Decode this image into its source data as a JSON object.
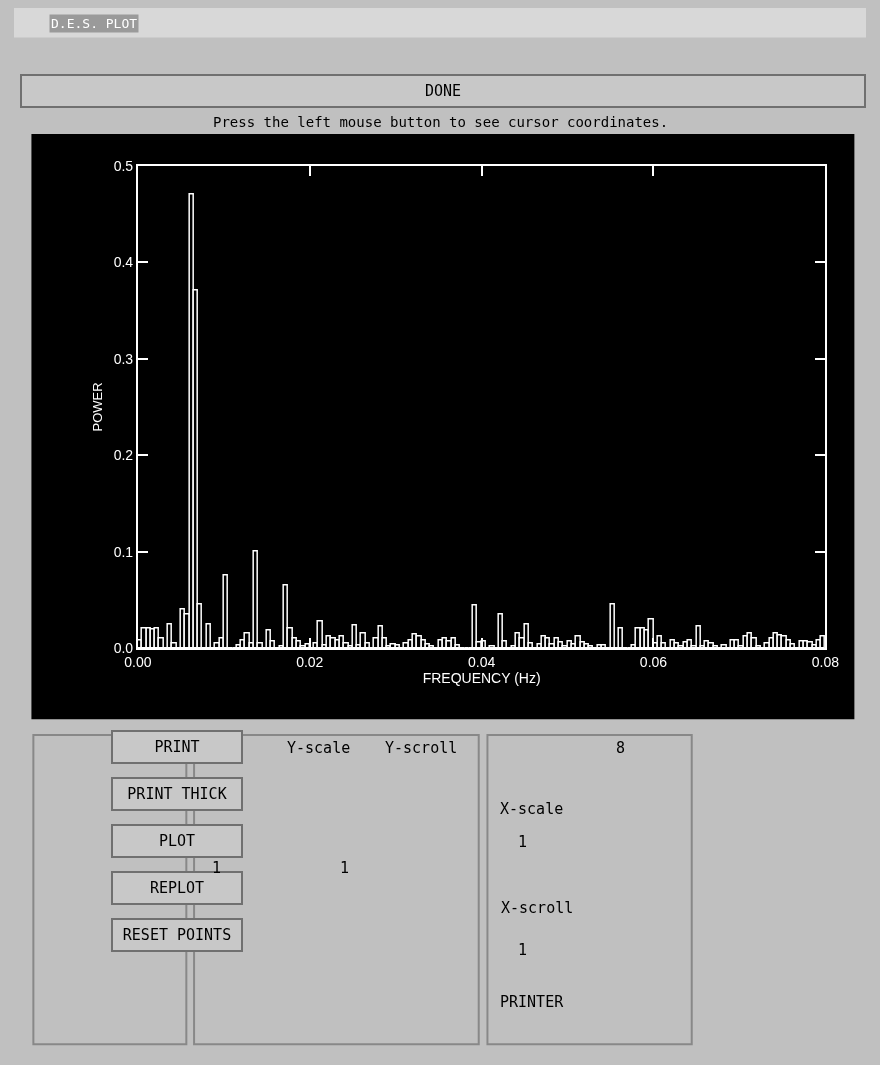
{
  "chart_data": {
    "type": "histogram",
    "title": "D.E.S. PLOT",
    "subtitle": "Press the left mouse button to see cursor coordinates.",
    "xlabel": "FREQUENCY (Hz)",
    "ylabel": "POWER",
    "color": "#ffffff",
    "bins": [
      0,
      0.0005,
      0.001,
      0.0015,
      0.002,
      0.0025,
      0.003,
      0.0035,
      0.004,
      0.0045,
      0.005,
      0.0055,
      0.006,
      0.0065,
      0.007,
      0.0075,
      0.008,
      0.0085,
      0.009,
      0.0095,
      0.01,
      0.0105,
      0.011,
      0.0115,
      0.012,
      0.0125,
      0.013,
      0.0135,
      0.014,
      0.0145,
      0.015,
      0.0155,
      0.016,
      0.0165,
      0.017,
      0.0175,
      0.018,
      0.0185,
      0.019,
      0.0195,
      0.02,
      0.0205,
      0.021,
      0.0215,
      0.022,
      0.0225,
      0.023,
      0.0235,
      0.024,
      0.0245,
      0.025,
      0.0255,
      0.026,
      0.0265,
      0.027,
      0.0275,
      0.028,
      0.0285,
      0.029,
      0.0295,
      0.03,
      0.0305,
      0.031,
      0.0315,
      0.032,
      0.0325,
      0.033,
      0.0335,
      0.034,
      0.0345,
      0.035,
      0.0355,
      0.036,
      0.0365,
      0.037,
      0.0375,
      0.038,
      0.0385,
      0.039,
      0.0395,
      0.04,
      0.0405,
      0.041,
      0.0415,
      0.042,
      0.0425,
      0.043,
      0.0435,
      0.044,
      0.0445,
      0.045,
      0.0455,
      0.046,
      0.0465,
      0.047,
      0.0475,
      0.048,
      0.0485,
      0.049,
      0.0495,
      0.05,
      0.0505,
      0.051,
      0.0515,
      0.052,
      0.0525,
      0.053,
      0.0535,
      0.054,
      0.0545,
      0.055,
      0.0555,
      0.056,
      0.0565,
      0.057,
      0.0575,
      0.058,
      0.0585,
      0.059,
      0.0595,
      0.06,
      0.0605,
      0.061,
      0.0615,
      0.062,
      0.0625,
      0.063,
      0.0635,
      0.064,
      0.0645,
      0.065,
      0.0655,
      0.066,
      0.0665,
      0.067,
      0.0675,
      0.068,
      0.0685,
      0.069,
      0.0695,
      0.07,
      0.0705,
      0.071,
      0.0715,
      0.072,
      0.0725,
      0.073,
      0.0735,
      0.074,
      0.0745,
      0.075,
      0.0755,
      0.076,
      0.0765,
      0.077,
      0.0775,
      0.078,
      0.0785,
      0.079,
      0.0795,
      0.08
    ],
    "values": [
      0.008,
      0.02,
      0.02,
      0.019,
      0.02,
      0.01,
      0.0,
      0.025,
      0.005,
      0.0,
      0.04,
      0.035,
      0.47,
      0.37,
      0.045,
      0.0,
      0.025,
      0.0,
      0.005,
      0.01,
      0.075,
      0.0,
      0.0,
      0.003,
      0.008,
      0.015,
      0.005,
      0.1,
      0.005,
      0.0,
      0.018,
      0.007,
      0.0,
      0.002,
      0.065,
      0.02,
      0.01,
      0.007,
      0.002,
      0.004,
      0.0,
      0.005,
      0.028,
      0.003,
      0.012,
      0.01,
      0.008,
      0.012,
      0.005,
      0.002,
      0.023,
      0.003,
      0.015,
      0.005,
      0.0,
      0.01,
      0.022,
      0.01,
      0.002,
      0.004,
      0.003,
      0.0,
      0.005,
      0.008,
      0.014,
      0.012,
      0.008,
      0.004,
      0.002,
      0.0,
      0.008,
      0.01,
      0.007,
      0.01,
      0.003,
      0.0,
      0.0,
      0.0,
      0.044,
      0.006,
      0.007,
      0.0,
      0.002,
      0.0,
      0.035,
      0.007,
      0.0,
      0.002,
      0.015,
      0.01,
      0.024,
      0.005,
      0.0,
      0.004,
      0.012,
      0.01,
      0.004,
      0.01,
      0.006,
      0.002,
      0.007,
      0.004,
      0.012,
      0.006,
      0.004,
      0.002,
      0.0,
      0.003,
      0.003,
      0.0,
      0.045,
      0.0,
      0.02,
      0.0,
      0.0,
      0.003,
      0.02,
      0.02,
      0.018,
      0.03,
      0.005,
      0.012,
      0.005,
      0.0,
      0.008,
      0.005,
      0.002,
      0.006,
      0.008,
      0.002,
      0.022,
      0.002,
      0.007,
      0.005,
      0.002,
      0.0,
      0.003,
      0.0,
      0.008,
      0.008,
      0.002,
      0.012,
      0.015,
      0.01,
      0.002,
      0.0,
      0.005,
      0.01,
      0.015,
      0.013,
      0.012,
      0.008,
      0.004,
      0.0,
      0.007,
      0.007,
      0.006,
      0.003,
      0.008,
      0.012
    ],
    "xlim": [
      0,
      0.08
    ],
    "xticks": [
      {
        "value": 0,
        "label": "0.00"
      },
      0.02,
      0.04,
      0.06,
      0.08
    ],
    "ylim": [
      0,
      0.5
    ],
    "yticks": [
      {
        "value": 0,
        "label": "0.0"
      },
      0.1,
      0.2,
      0.3,
      0.4,
      0.5
    ],
    "annotations": [
      "DONE",
      "PRINT",
      "PRINT THICK",
      "PLOT",
      "REPLOT",
      "RESET POINTS",
      "Y-scale",
      "1",
      "Y-scroll",
      "1",
      "8",
      "X-scale",
      "1",
      "X-scroll",
      "1",
      "PRINTER"
    ]
  }
}
